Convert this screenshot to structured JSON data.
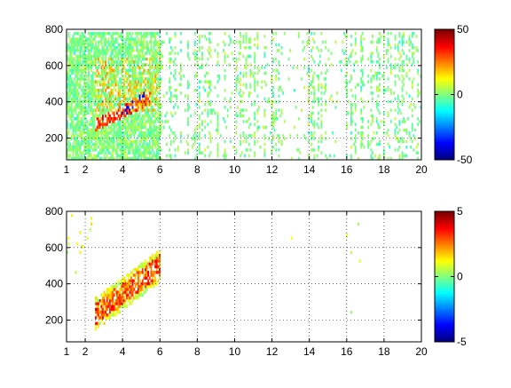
{
  "chart_data": [
    {
      "type": "heatmap",
      "xlim": [
        1,
        20
      ],
      "ylim": [
        80,
        800
      ],
      "x_ticks": [
        {
          "value": 1,
          "label": "1"
        },
        {
          "value": 2,
          "label": "2"
        },
        {
          "value": 4,
          "label": "4"
        },
        {
          "value": 6,
          "label": "6"
        },
        {
          "value": 8,
          "label": "8"
        },
        {
          "value": 10,
          "label": "10"
        },
        {
          "value": 12,
          "label": "12"
        },
        {
          "value": 14,
          "label": "14"
        },
        {
          "value": 16,
          "label": "16"
        },
        {
          "value": 18,
          "label": "18"
        },
        {
          "value": 20,
          "label": "20"
        }
      ],
      "y_ticks": [
        {
          "value": 200,
          "label": "200"
        },
        {
          "value": 400,
          "label": "400"
        },
        {
          "value": 600,
          "label": "600"
        },
        {
          "value": 800,
          "label": "800"
        }
      ],
      "grid": true,
      "colormap": "jet",
      "clim": [
        -50,
        50
      ],
      "colorbar_ticks": [
        {
          "value": 50,
          "label": "50"
        },
        {
          "value": 0,
          "label": "0"
        },
        {
          "value": -50,
          "label": "-50"
        }
      ],
      "pattern": {
        "dense_x_range": [
          1,
          6
        ],
        "sparse_x_range": [
          6,
          20
        ],
        "ridge": {
          "x": [
            2.5,
            5.5
          ],
          "y": [
            270,
            420
          ],
          "value": 40
        },
        "trough": {
          "x": [
            3.8,
            5.2
          ],
          "y": [
            320,
            440
          ],
          "value": -45
        },
        "background_value": 0
      }
    },
    {
      "type": "heatmap",
      "xlim": [
        1,
        20
      ],
      "ylim": [
        80,
        800
      ],
      "x_ticks": [
        {
          "value": 1,
          "label": "1"
        },
        {
          "value": 2,
          "label": "2"
        },
        {
          "value": 4,
          "label": "4"
        },
        {
          "value": 6,
          "label": "6"
        },
        {
          "value": 8,
          "label": "8"
        },
        {
          "value": 10,
          "label": "10"
        },
        {
          "value": 12,
          "label": "12"
        },
        {
          "value": 14,
          "label": "14"
        },
        {
          "value": 16,
          "label": "16"
        },
        {
          "value": 18,
          "label": "18"
        },
        {
          "value": 20,
          "label": "20"
        }
      ],
      "y_ticks": [
        {
          "value": 200,
          "label": "200"
        },
        {
          "value": 400,
          "label": "400"
        },
        {
          "value": 600,
          "label": "600"
        },
        {
          "value": 800,
          "label": "800"
        }
      ],
      "grid": true,
      "colormap": "jet",
      "clim": [
        -5,
        5
      ],
      "colorbar_ticks": [
        {
          "value": 5,
          "label": "5"
        },
        {
          "value": 0,
          "label": "0"
        },
        {
          "value": -5,
          "label": "-5"
        }
      ],
      "pattern": {
        "band": {
          "x": [
            2.5,
            6.0
          ],
          "y": [
            230,
            500
          ],
          "value": 4
        },
        "scatter_edge": {
          "x": [
            1.0,
            2.5
          ],
          "y": [
            450,
            780
          ]
        },
        "background_value": 0
      }
    }
  ]
}
